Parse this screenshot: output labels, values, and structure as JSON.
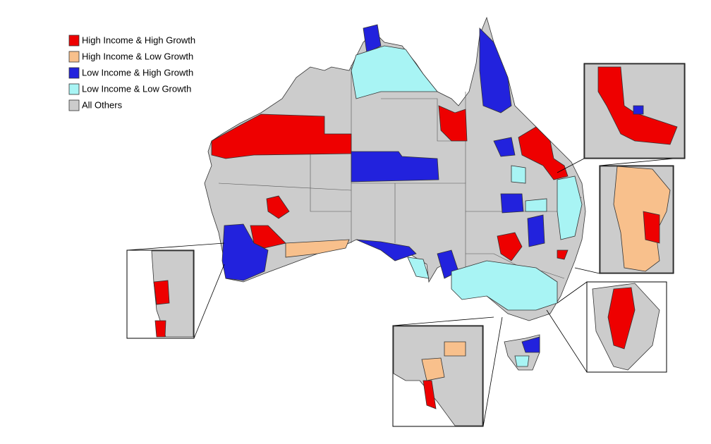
{
  "legend": {
    "items": [
      {
        "label": "High Income & High Growth",
        "color": "#ee0000"
      },
      {
        "label": "High Income & Low Growth",
        "color": "#f8c08c"
      },
      {
        "label": "Low Income & High Growth",
        "color": "#2222dd"
      },
      {
        "label": "Low Income & Low Growth",
        "color": "#a8f4f4"
      },
      {
        "label": "All Others",
        "color": "#cccccc"
      }
    ]
  }
}
